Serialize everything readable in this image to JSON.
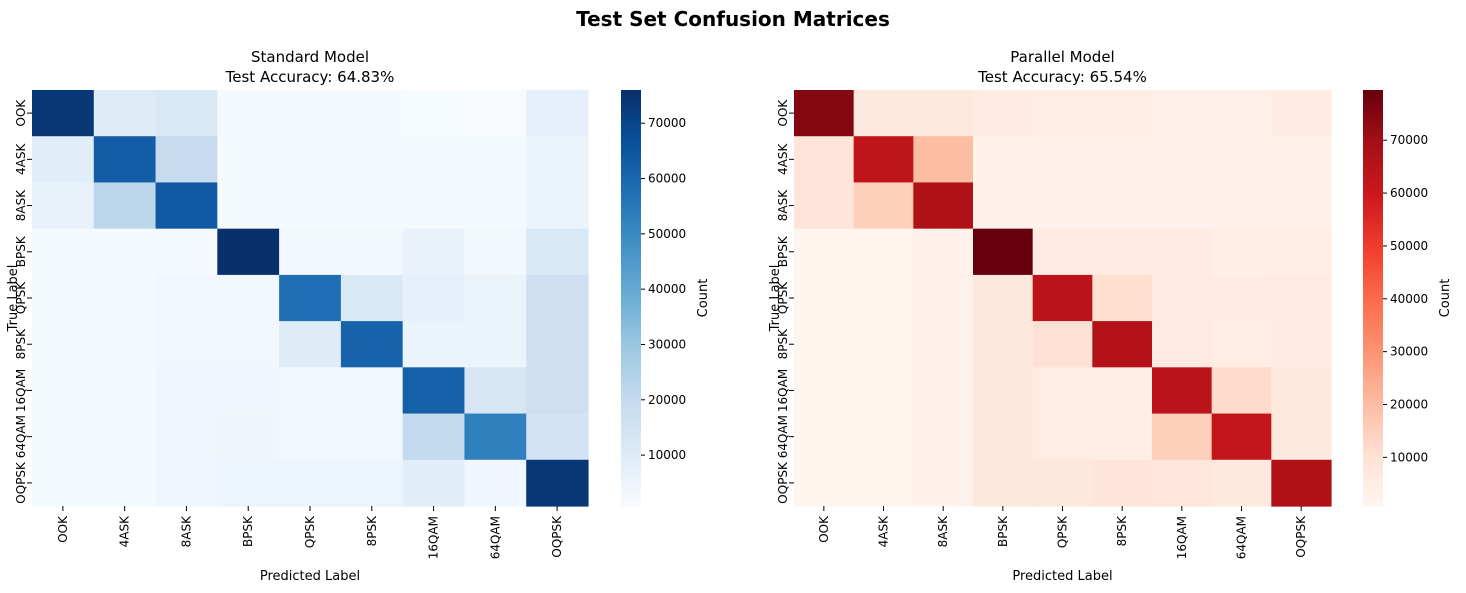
{
  "figure": {
    "suptitle": "Test Set Confusion Matrices"
  },
  "chart_data": [
    {
      "type": "heatmap",
      "title_line1": "Standard Model",
      "title_line2": "Test Accuracy: 64.83%",
      "xlabel": "Predicted Label",
      "ylabel": "True Label",
      "x_categories": [
        "OOK",
        "4ASK",
        "8ASK",
        "BPSK",
        "QPSK",
        "8PSK",
        "16QAM",
        "64QAM",
        "OQPSK"
      ],
      "y_categories": [
        "OOK",
        "4ASK",
        "8ASK",
        "BPSK",
        "QPSK",
        "8PSK",
        "16QAM",
        "64QAM",
        "OQPSK"
      ],
      "colormap": "Blues",
      "colorbar_label": "Count",
      "colorbar_range": [
        800,
        76000
      ],
      "colorbar_ticks": [
        10000,
        20000,
        30000,
        40000,
        50000,
        60000,
        70000
      ],
      "colorbar_tick_labels": [
        "10000",
        "20000",
        "30000",
        "40000",
        "50000",
        "60000",
        "70000"
      ],
      "matrix": [
        [
          74000,
          10000,
          12000,
          1500,
          1500,
          1500,
          1000,
          800,
          7000
        ],
        [
          9000,
          63000,
          19500,
          1500,
          1500,
          1500,
          1500,
          1500,
          5500
        ],
        [
          6000,
          22000,
          64000,
          1500,
          1500,
          1500,
          1500,
          1500,
          5500
        ],
        [
          1500,
          1500,
          2000,
          76000,
          2500,
          2800,
          6000,
          2500,
          12000
        ],
        [
          1500,
          1500,
          3000,
          3000,
          58000,
          12000,
          7000,
          5000,
          17000
        ],
        [
          1500,
          1500,
          3000,
          3000,
          10000,
          61000,
          5500,
          5500,
          17000
        ],
        [
          1500,
          1500,
          3500,
          3500,
          2500,
          2500,
          62000,
          13000,
          17000
        ],
        [
          1500,
          1500,
          3500,
          4000,
          2500,
          3000,
          20000,
          53000,
          15000
        ],
        [
          1500,
          1500,
          3500,
          4500,
          4500,
          4500,
          9000,
          3500,
          74000
        ]
      ]
    },
    {
      "type": "heatmap",
      "title_line1": "Parallel Model",
      "title_line2": "Test Accuracy: 65.54%",
      "xlabel": "Predicted Label",
      "ylabel": "True Label",
      "x_categories": [
        "OOK",
        "4ASK",
        "8ASK",
        "BPSK",
        "QPSK",
        "8PSK",
        "16QAM",
        "64QAM",
        "OQPSK"
      ],
      "y_categories": [
        "OOK",
        "4ASK",
        "8ASK",
        "BPSK",
        "QPSK",
        "8PSK",
        "16QAM",
        "64QAM",
        "OQPSK"
      ],
      "colormap": "Reds",
      "colorbar_label": "Count",
      "colorbar_range": [
        800,
        79500
      ],
      "colorbar_ticks": [
        10000,
        20000,
        30000,
        40000,
        50000,
        60000,
        70000
      ],
      "colorbar_tick_labels": [
        "10000",
        "20000",
        "30000",
        "40000",
        "50000",
        "60000",
        "70000"
      ],
      "matrix": [
        [
          75000,
          6500,
          6500,
          5500,
          4500,
          4500,
          3500,
          3500,
          5500
        ],
        [
          8500,
          63000,
          20000,
          2500,
          2000,
          2000,
          2500,
          2000,
          3000
        ],
        [
          8500,
          15000,
          67000,
          2500,
          2000,
          2000,
          2500,
          2000,
          3000
        ],
        [
          1500,
          1500,
          2000,
          79500,
          5500,
          5500,
          5500,
          4000,
          4500
        ],
        [
          1500,
          1500,
          2000,
          7000,
          64000,
          11000,
          6000,
          5500,
          6000
        ],
        [
          1500,
          1500,
          2000,
          7000,
          10000,
          66000,
          6000,
          5000,
          5500
        ],
        [
          1500,
          1500,
          2000,
          7000,
          5000,
          5000,
          64000,
          12000,
          6500
        ],
        [
          1500,
          1500,
          2000,
          7000,
          5000,
          5000,
          15000,
          62000,
          6500
        ],
        [
          1500,
          1500,
          2000,
          7500,
          7500,
          8500,
          8000,
          6500,
          67000
        ]
      ]
    }
  ]
}
